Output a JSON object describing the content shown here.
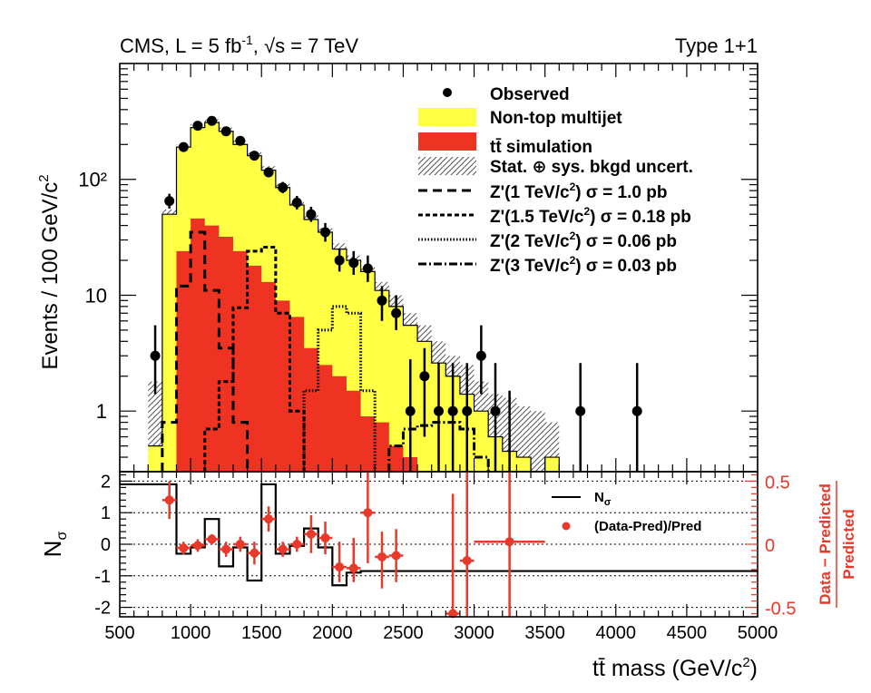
{
  "header": {
    "left_base": "CMS, L = 5 fb",
    "left_sup": "-1",
    "left_sep": ", ",
    "left_root": "√s = 7 TeV",
    "right": "Type 1+1"
  },
  "axes": {
    "top_ylabel": "Events / 100 GeV/c",
    "top_ylabel_sup": "2",
    "bottom_ylabel": "N",
    "bottom_ylabel_sub": "σ",
    "right_ylabel_num": "Data − Predicted",
    "right_ylabel_den": "Predicted",
    "xlabel": "tt̄ mass (GeV/c",
    "xlabel_sup": "2",
    "xlabel_end": ")"
  },
  "legend": {
    "observed": "Observed",
    "multijet": "Non-top multijet",
    "ttbar": "tt̄ simulation",
    "uncert": "Stat. ⊕ sys. bkgd uncert.",
    "zp1": {
      "pre": "Z'(1 TeV/c",
      "post": ") σ = 1.0 pb"
    },
    "zp15": {
      "pre": "Z'(1.5 TeV/c",
      "post": ") σ = 0.18 pb"
    },
    "zp2": {
      "pre": "Z'(2 TeV/c",
      "post": ") σ = 0.06 pb"
    },
    "zp3": {
      "pre": "Z'(3 TeV/c",
      "post": ") σ = 0.03 pb"
    },
    "nsigma": "N",
    "nsigma_sub": "σ",
    "ratio": "(Data-Pred)/Pred"
  },
  "colors": {
    "multijet": "#ffff44",
    "ttbar": "#ee3322",
    "ratio": "#e8392a",
    "frame": "#000000"
  },
  "chart_data": [
    {
      "type": "bar",
      "panel": "main",
      "xlim": [
        500,
        5000
      ],
      "ylim": [
        0.3,
        1000
      ],
      "yscale": "log",
      "y_ticks": [
        "1",
        "10",
        "10²"
      ],
      "bin_edges": [
        700,
        800,
        900,
        1000,
        1100,
        1200,
        1300,
        1400,
        1500,
        1600,
        1700,
        1800,
        1900,
        2000,
        2100,
        2200,
        2300,
        2400,
        2500,
        2600,
        2700,
        2800,
        2900,
        3000,
        3100,
        3200,
        3300,
        3400,
        3500,
        3600
      ],
      "series": [
        {
          "name": "Non-top multijet",
          "stack_total": [
            0.5,
            50,
            190,
            280,
            310,
            260,
            200,
            160,
            120,
            85,
            60,
            45,
            35,
            25,
            20,
            16,
            11,
            8,
            5.5,
            4,
            2.6,
            2,
            1.4,
            1,
            0.6,
            0.45,
            0.4,
            0.3,
            0.4,
            0.3
          ]
        },
        {
          "name": "tt̄ simulation",
          "values": [
            0.25,
            0.3,
            24,
            46,
            40,
            32,
            24,
            18,
            13,
            9,
            6.5,
            3.5,
            2.5,
            2,
            1.5,
            0.9,
            0.8,
            0.5,
            0.4,
            0.3,
            0.25,
            0.25,
            0.2,
            0.2,
            0.2,
            0.2,
            0.2,
            0.2,
            0.2,
            0.2
          ]
        },
        {
          "name": "Stat. ⊕ sys. bkgd uncert.",
          "band_high": [
            1.8,
            55,
            200,
            300,
            330,
            280,
            215,
            172,
            130,
            92,
            66,
            49,
            38,
            28,
            22,
            18,
            13,
            10,
            7,
            5.5,
            4,
            3,
            2.5,
            1.8,
            1.4,
            1.3,
            1.1,
            1,
            0.8,
            0.7
          ]
        },
        {
          "name": "Z'(1 TeV/c²) σ = 1.0 pb",
          "edges": [
            800,
            900,
            1000,
            1100,
            1200,
            1300,
            1400
          ],
          "values": [
            0.8,
            12,
            35,
            11,
            3.5,
            0.8
          ]
        },
        {
          "name": "Z'(1.5 TeV/c²) σ = 0.18 pb",
          "edges": [
            1100,
            1200,
            1300,
            1400,
            1500,
            1600,
            1700,
            1800
          ],
          "values": [
            0.7,
            1.8,
            7.8,
            24,
            26,
            7,
            1
          ]
        },
        {
          "name": "Z'(2 TeV/c²) σ = 0.06 pb",
          "edges": [
            1800,
            1900,
            2000,
            2100,
            2200,
            2300
          ],
          "values": [
            1.5,
            5,
            8,
            7,
            1.5
          ]
        },
        {
          "name": "Z'(3 TeV/c²) σ = 0.03 pb",
          "edges": [
            2400,
            2500,
            2600,
            2700,
            2800,
            2900,
            3000,
            3100
          ],
          "values": [
            0.5,
            0.7,
            0.75,
            0.8,
            0.8,
            0.7,
            0.4
          ]
        },
        {
          "name": "Observed",
          "x": [
            750,
            850,
            950,
            1050,
            1150,
            1250,
            1350,
            1450,
            1550,
            1650,
            1750,
            1850,
            1950,
            2050,
            2150,
            2250,
            2350,
            2450,
            2550,
            2650,
            2750,
            2850,
            2950,
            3050,
            3150,
            3250,
            3750,
            4150
          ],
          "y": [
            3,
            65,
            190,
            290,
            320,
            260,
            215,
            160,
            115,
            85,
            63,
            50,
            35,
            20,
            19,
            17,
            9,
            7,
            1,
            2,
            1,
            1,
            1,
            3,
            1,
            0.2,
            1,
            1
          ],
          "yerr_hi": [
            5.5,
            75,
            205,
            305,
            335,
            275,
            230,
            175,
            125,
            95,
            72,
            58,
            42,
            25,
            24,
            22,
            12,
            10,
            2.8,
            3.5,
            2.6,
            2.6,
            2.6,
            5.5,
            2.6,
            1.5,
            2.6,
            2.6
          ],
          "yerr_lo": [
            1.4,
            56,
            175,
            275,
            305,
            245,
            200,
            148,
            105,
            76,
            55,
            43,
            29,
            16,
            15,
            13,
            6,
            5,
            0.3,
            0.6,
            0.3,
            0.3,
            0.3,
            1.4,
            0.3,
            0.05,
            0.3,
            0.3
          ]
        }
      ]
    },
    {
      "type": "line",
      "panel": "ratio",
      "xlim": [
        500,
        5000
      ],
      "ylim": [
        -2.3,
        2.3
      ],
      "right_ylim": [
        -0.575,
        0.575
      ],
      "x_ticks": [
        "500",
        "1000",
        "1500",
        "2000",
        "2500",
        "3000",
        "3500",
        "4000",
        "4500",
        "5000"
      ],
      "y_ticks": [
        "-2",
        "-1",
        "0",
        "1",
        "2"
      ],
      "right_ticks": [
        "-0.5",
        "0",
        "0.5"
      ],
      "series": [
        {
          "name": "Nσ",
          "edges": [
            500,
            900,
            1000,
            1100,
            1200,
            1300,
            1400,
            1500,
            1600,
            1700,
            1800,
            1900,
            2000,
            2100,
            2200,
            5000
          ],
          "values": [
            1.9,
            -0.3,
            -0.1,
            0.8,
            -0.7,
            -0.1,
            -1.15,
            1.9,
            -0.3,
            -0.05,
            0.5,
            -0.1,
            -1.3,
            -0.9,
            -0.85
          ]
        },
        {
          "name": "(Data-Pred)/Pred",
          "x": [
            850,
            950,
            1050,
            1150,
            1250,
            1350,
            1450,
            1550,
            1650,
            1750,
            1850,
            1950,
            2050,
            2150,
            2250,
            2350,
            2450,
            2850,
            2950,
            3250
          ],
          "y": [
            0.35,
            -0.03,
            -0.01,
            0.04,
            -0.04,
            0.0,
            -0.07,
            0.2,
            -0.04,
            0.0,
            0.08,
            0.05,
            -0.18,
            -0.19,
            0.25,
            -0.1,
            -0.09,
            -0.55,
            -0.13,
            0.02
          ],
          "err_hi": [
            0.5,
            0.02,
            0.04,
            0.08,
            0.02,
            0.06,
            0.02,
            0.3,
            0.02,
            0.06,
            0.23,
            0.18,
            0.02,
            0.05,
            0.7,
            0.1,
            0.12,
            0.4,
            0.7,
            0.7
          ],
          "err_lo": [
            0.2,
            -0.08,
            -0.06,
            0.0,
            -0.1,
            -0.06,
            -0.16,
            0.1,
            -0.1,
            -0.06,
            -0.07,
            -0.08,
            -0.3,
            -0.3,
            -0.15,
            -0.35,
            -0.3,
            -0.6,
            -0.6,
            -0.6
          ],
          "xerr": [
            50,
            50,
            50,
            50,
            50,
            50,
            50,
            50,
            50,
            50,
            50,
            50,
            50,
            50,
            50,
            50,
            50,
            50,
            50,
            250
          ]
        }
      ]
    }
  ]
}
